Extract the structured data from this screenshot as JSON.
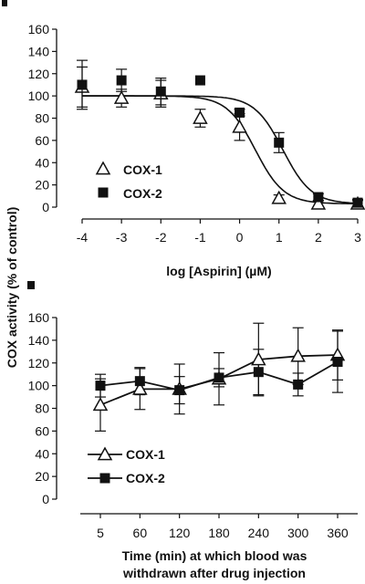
{
  "shared_ylabel": "COX activity (% of control)",
  "colors": {
    "ink": "#111111",
    "background": "#ffffff"
  },
  "chart_data": [
    {
      "type": "scatter",
      "xlabel": "log [Aspirin] (µM)",
      "ylabel": "COX activity (% of control)",
      "xlim": [
        -4,
        3
      ],
      "ylim": [
        0,
        160
      ],
      "x_ticks": [
        -4,
        -3,
        -2,
        -1,
        0,
        1,
        2,
        3
      ],
      "y_ticks": [
        0,
        20,
        40,
        60,
        80,
        100,
        120,
        140,
        160
      ],
      "grid": false,
      "legend": "left",
      "series": [
        {
          "name": "COX-1",
          "marker": "open-triangle",
          "x": [
            -4,
            -3,
            -2,
            -1,
            0,
            1,
            2,
            3
          ],
          "y": [
            108,
            98,
            102,
            80,
            72,
            8,
            3,
            3
          ],
          "err": [
            18,
            8,
            12,
            8,
            12,
            3,
            3,
            3
          ],
          "fit": {
            "top": 100,
            "bottom": 3,
            "log_ic50": 0.4,
            "hill": -1.2
          }
        },
        {
          "name": "COX-2",
          "marker": "filled-square",
          "x": [
            -4,
            -3,
            -2,
            -1,
            0,
            1,
            2,
            3
          ],
          "y": [
            110,
            114,
            104,
            114,
            85,
            58,
            9,
            4
          ],
          "err": [
            22,
            10,
            12,
            0,
            3,
            9,
            3,
            3
          ],
          "fit": {
            "top": 100,
            "bottom": 3,
            "log_ic50": 1.1,
            "hill": -1.2
          }
        }
      ]
    },
    {
      "type": "line",
      "xlabel": "Time (min) at which blood was withdrawn after drug injection",
      "xlabel_lines": [
        "Time (min) at which blood was",
        "withdrawn after drug injection"
      ],
      "ylabel": "COX activity (% of control)",
      "categories": [
        "5",
        "60",
        "120",
        "180",
        "240",
        "300",
        "360"
      ],
      "ylim": [
        0,
        160
      ],
      "y_ticks": [
        0,
        20,
        40,
        60,
        80,
        100,
        120,
        140,
        160
      ],
      "grid": false,
      "legend": "bottom-left",
      "series": [
        {
          "name": "COX-1",
          "marker": "open-triangle",
          "values": [
            83,
            97,
            97,
            106,
            123,
            126,
            127
          ],
          "err": [
            23,
            18,
            22,
            23,
            32,
            25,
            22
          ]
        },
        {
          "name": "COX-2",
          "marker": "filled-square",
          "values": [
            100,
            104,
            96,
            107,
            112,
            101,
            121
          ],
          "err": [
            10,
            12,
            12,
            8,
            20,
            10,
            27
          ]
        }
      ]
    }
  ]
}
